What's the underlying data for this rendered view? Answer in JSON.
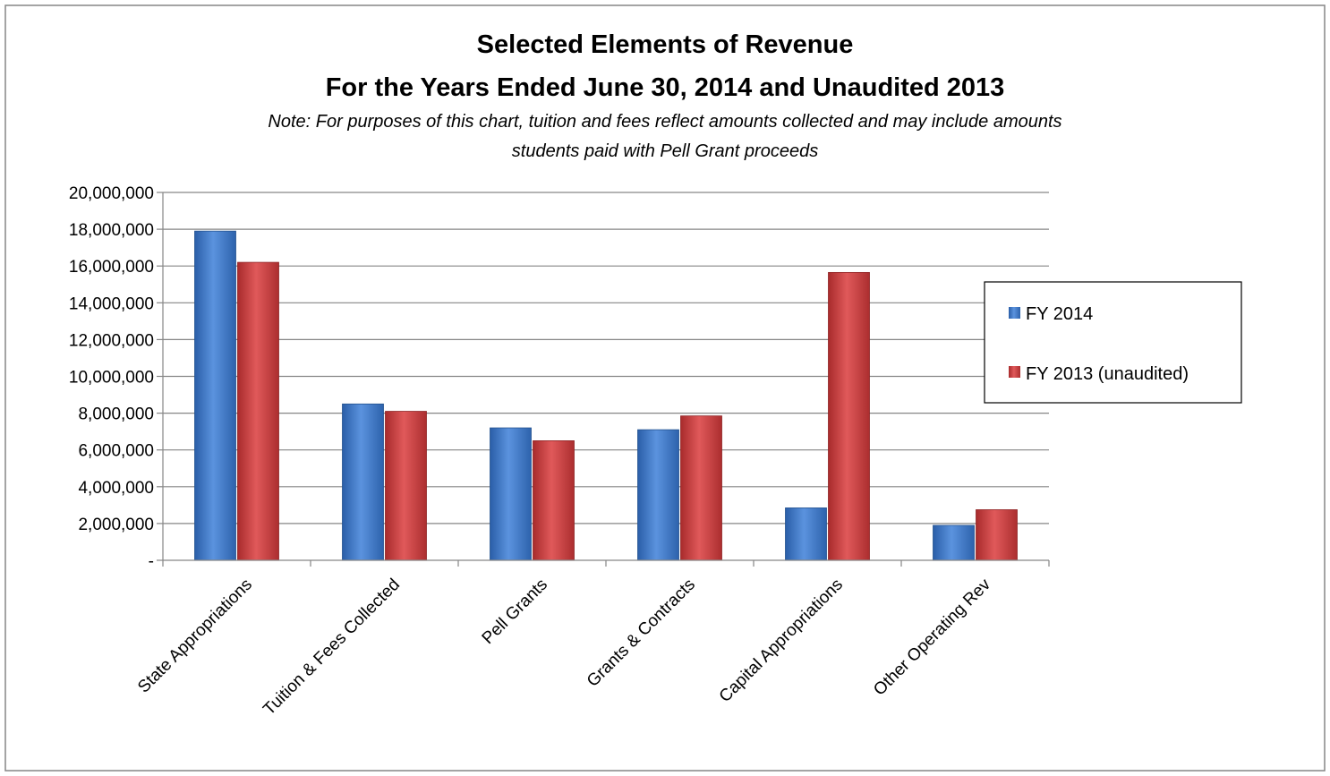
{
  "chart_data": {
    "type": "bar",
    "title_lines": [
      "Selected Elements of Revenue",
      "For the Years Ended June 30, 2014  and Unaudited 2013"
    ],
    "note_lines": [
      "Note: For purposes of this chart, tuition and fees reflect amounts collected and may include amounts",
      "students paid with Pell Grant proceeds"
    ],
    "categories": [
      "State Appropriations",
      "Tuition & Fees Collected",
      "Pell Grants",
      "Grants & Contracts",
      "Capital Appropriations",
      "Other Operating Rev"
    ],
    "series": [
      {
        "name": "FY 2014",
        "color": "#3A74C4",
        "values": [
          17900000,
          8500000,
          7200000,
          7100000,
          2850000,
          1900000
        ]
      },
      {
        "name": "FY 2013 (unaudited)",
        "color": "#C8393A",
        "values": [
          16200000,
          8100000,
          6500000,
          7850000,
          15650000,
          2750000
        ]
      }
    ],
    "ylim": [
      0,
      20000000
    ],
    "yticks": [
      {
        "value": 0,
        "label": "-"
      },
      {
        "value": 2000000,
        "label": "2,000,000"
      },
      {
        "value": 4000000,
        "label": "4,000,000"
      },
      {
        "value": 6000000,
        "label": "6,000,000"
      },
      {
        "value": 8000000,
        "label": "8,000,000"
      },
      {
        "value": 10000000,
        "label": "10,000,000"
      },
      {
        "value": 12000000,
        "label": "12,000,000"
      },
      {
        "value": 14000000,
        "label": "14,000,000"
      },
      {
        "value": 16000000,
        "label": "16,000,000"
      },
      {
        "value": 18000000,
        "label": "18,000,000"
      },
      {
        "value": 20000000,
        "label": "20,000,000"
      }
    ],
    "xlabel": "",
    "ylabel": "",
    "grid": true,
    "legend_position": "right"
  }
}
